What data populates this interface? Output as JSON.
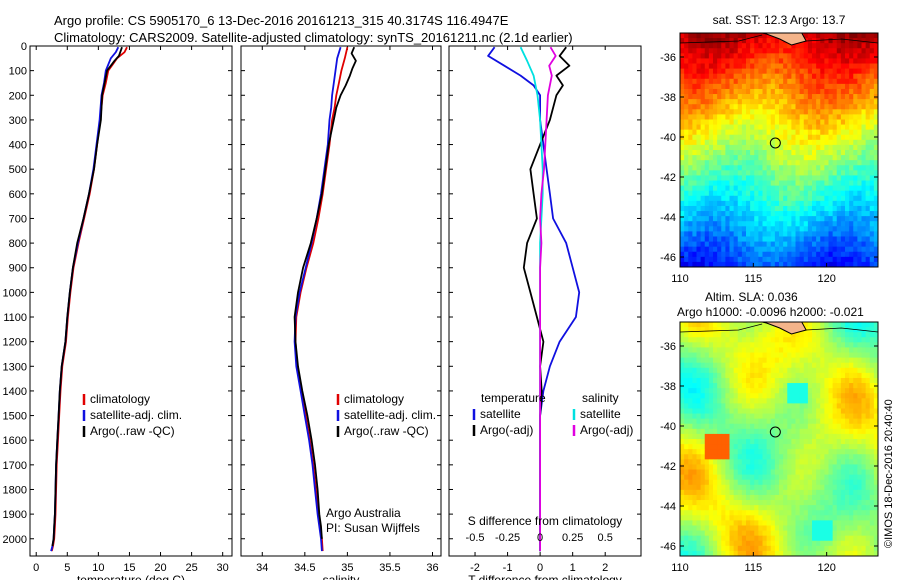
{
  "header": {
    "line1": "Argo profile: CS 5905170_6 13-Dec-2016 20161213_315 40.3174S 116.4947E",
    "line2": "Climatology: CARS2009. Satellite-adjusted climatology: synTS_20161211.nc (2.1d earlier)"
  },
  "credit": "©IMOS 18-Dec-2016 20:40:40",
  "colors": {
    "climatology": "#e00000",
    "satellite": "#1010e0",
    "argo": "#000000",
    "satellite_salinity": "#00e0e0",
    "argo_salinity": "#e000e0"
  },
  "chart_data": [
    {
      "id": "temperature",
      "type": "line",
      "xlabel": "temperature (deg C)",
      "ylabel": "",
      "xlim": [
        -1,
        31.5
      ],
      "ylim": [
        0,
        2070
      ],
      "y_reversed": true,
      "x_ticks": [
        0,
        5,
        10,
        15,
        20,
        25,
        30
      ],
      "y_ticks": [
        0,
        100,
        200,
        300,
        400,
        500,
        600,
        700,
        800,
        900,
        1000,
        1100,
        1200,
        1300,
        1400,
        1500,
        1600,
        1700,
        1800,
        1900,
        2000
      ],
      "legend": {
        "position": "bottom-center",
        "entries": [
          "climatology",
          "satellite-adj. clim.",
          "Argo(..raw -QC)"
        ]
      },
      "series": [
        {
          "name": "climatology",
          "color_key": "climatology",
          "x": [
            14.6,
            14.2,
            13.0,
            12.3,
            11.6,
            11.2,
            10.7,
            10.3,
            9.8,
            9.3,
            8.6,
            7.7,
            6.8,
            6.0,
            5.5,
            5.1,
            4.8,
            4.2,
            3.9,
            3.7,
            3.5,
            3.3,
            3.2,
            3.1,
            3.0,
            2.9,
            2.7,
            2.5
          ],
          "y": [
            5,
            25,
            50,
            75,
            100,
            150,
            200,
            300,
            400,
            500,
            600,
            700,
            800,
            900,
            1000,
            1100,
            1200,
            1300,
            1400,
            1500,
            1600,
            1700,
            1800,
            1900,
            1950,
            2000,
            2030,
            2050
          ]
        },
        {
          "name": "satellite-adj. clim.",
          "color_key": "satellite",
          "x": [
            13.2,
            12.8,
            12.0,
            11.6,
            11.2,
            10.9,
            10.5,
            10.2,
            9.7,
            9.2,
            8.5,
            7.6,
            6.7,
            5.9,
            5.4,
            5.0,
            4.7,
            4.1,
            3.8,
            3.6,
            3.4,
            3.2,
            3.1,
            3.0,
            2.9,
            2.8,
            2.6,
            2.4
          ],
          "y": [
            5,
            25,
            50,
            75,
            100,
            150,
            200,
            300,
            400,
            500,
            600,
            700,
            800,
            900,
            1000,
            1100,
            1200,
            1300,
            1400,
            1500,
            1600,
            1700,
            1800,
            1900,
            1950,
            2000,
            2030,
            2050
          ]
        },
        {
          "name": "Argo(..raw -QC)",
          "color_key": "argo",
          "x": [
            13.8,
            13.6,
            13.3,
            12.6,
            12.0,
            11.4,
            11.0,
            10.6,
            10.4,
            9.8,
            9.3,
            8.5,
            7.6,
            6.6,
            5.9,
            5.4,
            5.0,
            4.7,
            4.1,
            3.8,
            3.6,
            3.4,
            3.2,
            3.1,
            3.0,
            2.9,
            2.8,
            2.6
          ],
          "y": [
            5,
            20,
            40,
            60,
            80,
            100,
            150,
            200,
            300,
            400,
            500,
            600,
            700,
            800,
            900,
            1000,
            1100,
            1200,
            1300,
            1400,
            1500,
            1600,
            1700,
            1800,
            1900,
            1950,
            2000,
            2030
          ]
        }
      ]
    },
    {
      "id": "salinity",
      "type": "line",
      "xlabel": "salinity",
      "ylabel": "",
      "xlim": [
        33.75,
        36.1
      ],
      "ylim": [
        0,
        2070
      ],
      "y_reversed": true,
      "x_ticks": [
        34,
        34.5,
        35,
        35.5,
        36
      ],
      "x_tick_labels": [
        "34",
        "34.5",
        "35",
        "35.5",
        "36"
      ],
      "legend": {
        "position": "bottom-right",
        "entries": [
          "climatology",
          "satellite-adj. clim.",
          "Argo(..raw -QC)"
        ]
      },
      "annotations": [
        "Argo Australia",
        "PI: Susan Wijffels"
      ],
      "series": [
        {
          "name": "climatology",
          "color_key": "climatology",
          "x": [
            35.0,
            34.97,
            34.93,
            34.9,
            34.87,
            34.85,
            34.82,
            34.79,
            34.75,
            34.71,
            34.66,
            34.6,
            34.52,
            34.45,
            34.4,
            34.39,
            34.41,
            34.46,
            34.51,
            34.56,
            34.6,
            34.63,
            34.66,
            34.68,
            34.7,
            34.71
          ],
          "y": [
            5,
            50,
            100,
            150,
            200,
            250,
            300,
            400,
            500,
            600,
            700,
            800,
            900,
            1000,
            1100,
            1200,
            1300,
            1400,
            1500,
            1600,
            1700,
            1800,
            1900,
            1950,
            2000,
            2050
          ]
        },
        {
          "name": "satellite-adj. clim.",
          "color_key": "satellite",
          "x": [
            34.92,
            34.88,
            34.86,
            34.84,
            34.82,
            34.81,
            34.79,
            34.77,
            34.73,
            34.69,
            34.64,
            34.58,
            34.51,
            34.44,
            34.39,
            34.38,
            34.4,
            34.45,
            34.5,
            34.55,
            34.59,
            34.62,
            34.65,
            34.67,
            34.69,
            34.7
          ],
          "y": [
            5,
            50,
            100,
            150,
            200,
            250,
            300,
            400,
            500,
            600,
            700,
            800,
            900,
            1000,
            1100,
            1200,
            1300,
            1400,
            1500,
            1600,
            1700,
            1800,
            1900,
            1950,
            2000,
            2050
          ]
        },
        {
          "name": "Argo(..raw -QC)",
          "color_key": "argo",
          "x": [
            35.08,
            35.05,
            35.1,
            35.06,
            35.03,
            34.98,
            34.92,
            34.87,
            34.84,
            34.78,
            34.74,
            34.7,
            34.64,
            34.57,
            34.48,
            34.42,
            34.38,
            34.39,
            34.42,
            34.47,
            34.53,
            34.58,
            34.62,
            34.65,
            34.67,
            34.69,
            34.7
          ],
          "y": [
            5,
            30,
            60,
            90,
            120,
            160,
            200,
            250,
            300,
            400,
            500,
            600,
            700,
            800,
            900,
            1000,
            1100,
            1200,
            1300,
            1400,
            1500,
            1600,
            1700,
            1800,
            1900,
            1950,
            2000
          ]
        }
      ]
    },
    {
      "id": "difference",
      "type": "line",
      "xlabel": "T difference from climatology",
      "top_xlabel": "S difference from climatology",
      "ylabel": "",
      "xlim": [
        -2.8,
        3.1
      ],
      "ylim": [
        0,
        2070
      ],
      "y_reversed": true,
      "x_ticks": [
        -2,
        -1,
        0,
        1,
        2
      ],
      "top_ticks": [
        -0.5,
        -0.25,
        0,
        0.25,
        0.5
      ],
      "top_tick_labels": [
        "-0.5",
        "-0.25",
        "0",
        "0.25",
        "0.5"
      ],
      "top_tick_scale": 4,
      "legend": {
        "position": "bottom",
        "groups": [
          {
            "title": "temperature",
            "entries": [
              "satellite",
              "Argo(-adj)"
            ]
          },
          {
            "title": "salinity",
            "entries": [
              "satellite",
              "Argo(-adj)"
            ]
          }
        ]
      },
      "series": [
        {
          "name": "temperature satellite",
          "color_key": "satellite",
          "x": [
            -1.4,
            -1.6,
            -1.1,
            -0.6,
            -0.2,
            0.0,
            0.0,
            0.1,
            0.2,
            0.3,
            0.4,
            0.8,
            1.0,
            1.2,
            1.1,
            0.6,
            0.3,
            0.1,
            0.0,
            0.0,
            0.0,
            0.0,
            0.0,
            0.0,
            0.0
          ],
          "y": [
            5,
            40,
            80,
            120,
            160,
            200,
            300,
            400,
            500,
            600,
            700,
            800,
            900,
            1000,
            1100,
            1200,
            1300,
            1400,
            1500,
            1600,
            1700,
            1800,
            1900,
            2000,
            2050
          ]
        },
        {
          "name": "temperature Argo(-adj)",
          "color_key": "argo",
          "x": [
            0.8,
            0.6,
            0.9,
            0.5,
            0.7,
            0.5,
            0.3,
            0.0,
            -0.3,
            -0.2,
            -0.1,
            -0.4,
            -0.5,
            -0.3,
            -0.1,
            0.1,
            0.0,
            0.05,
            0.0,
            0.0,
            0.0,
            0.0,
            0.0,
            0.0,
            0.0
          ],
          "y": [
            5,
            40,
            80,
            120,
            160,
            200,
            300,
            400,
            500,
            600,
            700,
            800,
            900,
            1000,
            1100,
            1200,
            1300,
            1400,
            1500,
            1600,
            1700,
            1800,
            1900,
            2000,
            2050
          ]
        },
        {
          "name": "salinity satellite",
          "color_key": "satellite_salinity",
          "x": [
            -0.15,
            -0.1,
            -0.05,
            -0.02,
            0.0,
            0.01,
            0.02,
            0.02,
            0.01,
            0.0,
            0.0,
            0.0,
            0.0,
            0.0,
            0.0,
            0.0,
            0.0,
            0.0,
            0.0
          ],
          "y": [
            5,
            60,
            120,
            200,
            300,
            400,
            500,
            600,
            700,
            800,
            900,
            1000,
            1200,
            1400,
            1600,
            1800,
            1900,
            2000,
            2050
          ]
        },
        {
          "name": "salinity Argo(-adj)",
          "color_key": "argo_salinity",
          "x": [
            0.08,
            0.12,
            0.07,
            0.09,
            0.06,
            0.05,
            0.04,
            0.03,
            0.01,
            0.0,
            0.01,
            0.0,
            0.0,
            0.0,
            0.0,
            0.0,
            0.0,
            0.0,
            0.0
          ],
          "y": [
            5,
            40,
            80,
            120,
            200,
            300,
            400,
            500,
            600,
            700,
            800,
            900,
            1000,
            1200,
            1400,
            1600,
            1800,
            2000,
            2050
          ]
        }
      ]
    },
    {
      "id": "sst_map",
      "type": "heatmap",
      "title": "sat. SST: 12.3 Argo: 13.7",
      "xlim": [
        110,
        123.5
      ],
      "ylim": [
        -46.5,
        -34.8
      ],
      "x_ticks": [
        110,
        115,
        120
      ],
      "y_ticks": [
        -36,
        -38,
        -40,
        -42,
        -44,
        -46
      ],
      "marker": {
        "lon": 116.5,
        "lat": -40.3
      },
      "colormap": "jet"
    },
    {
      "id": "sla_map",
      "type": "heatmap",
      "title": "Altim. SLA: 0.036",
      "subtitle": "Argo h1000: -0.0096 h2000: -0.021",
      "xlim": [
        110,
        123.5
      ],
      "ylim": [
        -46.5,
        -34.8
      ],
      "x_ticks": [
        110,
        115,
        120
      ],
      "y_ticks": [
        -36,
        -38,
        -40,
        -42,
        -44,
        -46
      ],
      "marker": {
        "lon": 116.5,
        "lat": -40.3
      },
      "colormap": "jet"
    }
  ]
}
